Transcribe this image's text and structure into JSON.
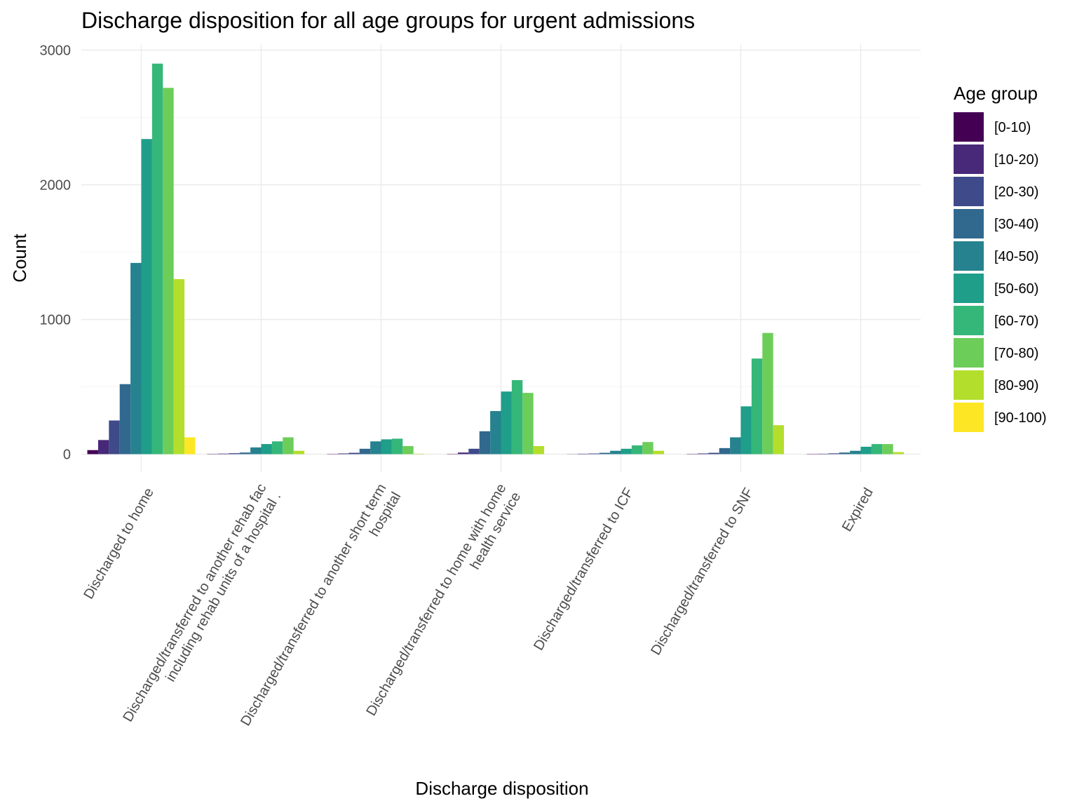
{
  "chart_data": {
    "type": "bar",
    "title": "Discharge disposition for all age groups for urgent admissions",
    "xlabel": "Discharge disposition",
    "ylabel": "Count",
    "ylim": [
      0,
      3000
    ],
    "yticks": [
      0,
      1000,
      2000,
      3000
    ],
    "grid": true,
    "legend_title": "Age group",
    "legend_position": "right",
    "categories": [
      [
        "Discharged to home"
      ],
      [
        "Discharged/transferred to another rehab fac",
        "including rehab units of a hospital ."
      ],
      [
        "Discharged/transferred to another short term",
        "hospital"
      ],
      [
        "Discharged/transferred to home with home",
        "health service"
      ],
      [
        "Discharged/transferred to ICF"
      ],
      [
        "Discharged/transferred to SNF"
      ],
      [
        "Expired"
      ]
    ],
    "series": [
      {
        "name": "[0-10)",
        "color": "#440154",
        "values": [
          30,
          2,
          2,
          2,
          1,
          2,
          2
        ]
      },
      {
        "name": "[10-20)",
        "color": "#482878",
        "values": [
          105,
          4,
          5,
          12,
          3,
          5,
          3
        ]
      },
      {
        "name": "[20-30)",
        "color": "#3E4A89",
        "values": [
          250,
          7,
          10,
          40,
          5,
          10,
          6
        ]
      },
      {
        "name": "[30-40)",
        "color": "#31688E",
        "values": [
          520,
          12,
          40,
          170,
          10,
          45,
          12
        ]
      },
      {
        "name": "[40-50)",
        "color": "#26828E",
        "values": [
          1420,
          50,
          95,
          320,
          25,
          125,
          25
        ]
      },
      {
        "name": "[50-60)",
        "color": "#1F9E89",
        "values": [
          2340,
          75,
          110,
          465,
          40,
          355,
          55
        ]
      },
      {
        "name": "[60-70)",
        "color": "#35B779",
        "values": [
          2900,
          95,
          115,
          550,
          65,
          710,
          75
        ]
      },
      {
        "name": "[70-80)",
        "color": "#6DCD59",
        "values": [
          2720,
          125,
          60,
          455,
          90,
          900,
          75
        ]
      },
      {
        "name": "[80-90)",
        "color": "#B4DE2C",
        "values": [
          1300,
          25,
          3,
          60,
          25,
          215,
          15
        ]
      },
      {
        "name": "[90-100)",
        "color": "#FDE725",
        "values": [
          125,
          0,
          0,
          0,
          0,
          0,
          0
        ]
      }
    ]
  }
}
